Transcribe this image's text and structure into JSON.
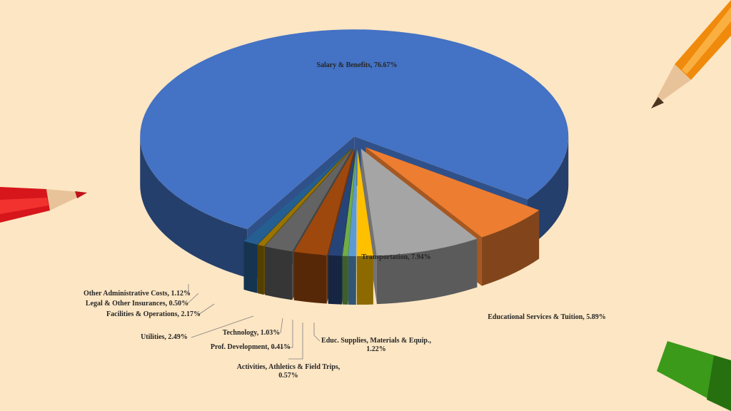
{
  "chart_data": {
    "type": "pie3d",
    "labels": [
      [
        "Salary & Benefits, 76.67%"
      ],
      [
        "Educational Services & Tuition,  5.89%"
      ],
      [
        "Transportation, 7.94%"
      ],
      [
        "Educ. Supplies, Materials & Equip.,",
        "1.22%"
      ],
      [
        "Activities,  Athletics & Field Trips,",
        "0.57%"
      ],
      [
        "Prof. Development, 0.41%"
      ],
      [
        "Technology, 1.03%"
      ],
      [
        "Utilities,  2.49%"
      ],
      [
        "Facilities  & Operations, 2.17%"
      ],
      [
        "Legal & Other Insurances, 0.50%"
      ],
      [
        "Other Administrative  Costs, 1.12%"
      ]
    ],
    "values": [
      76.67,
      5.89,
      7.94,
      1.22,
      0.57,
      0.41,
      1.03,
      2.49,
      2.17,
      0.5,
      1.12
    ],
    "colors": [
      "#4472c4",
      "#ed7d31",
      "#a5a5a5",
      "#ffc000",
      "#5b9bd5",
      "#70ad47",
      "#264478",
      "#9e480e",
      "#636363",
      "#997300",
      "#255e91"
    ]
  }
}
